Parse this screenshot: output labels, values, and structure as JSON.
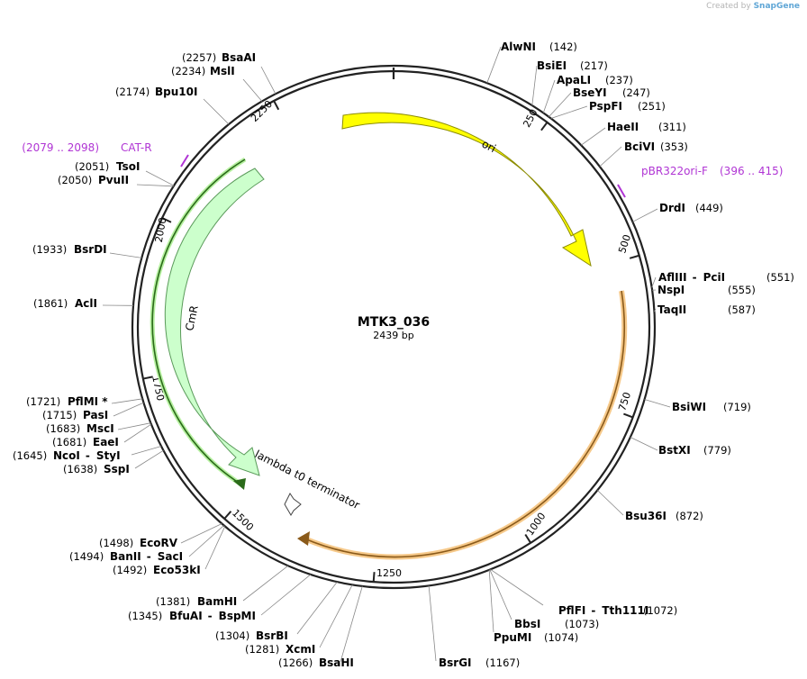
{
  "credit": {
    "prefix": "Created by",
    "brand": "SnapGene"
  },
  "plasmid": {
    "name": "MTK3_036",
    "length_label": "2439 bp",
    "length": 2439
  },
  "ruler": [
    {
      "label": "250",
      "pos": 250
    },
    {
      "label": "500",
      "pos": 500
    },
    {
      "label": "750",
      "pos": 750
    },
    {
      "label": "1000",
      "pos": 1000
    },
    {
      "label": "1250",
      "pos": 1250
    },
    {
      "label": "1500",
      "pos": 1500
    },
    {
      "label": "1750",
      "pos": 1750
    },
    {
      "label": "2000",
      "pos": 2000
    },
    {
      "label": "2250",
      "pos": 2250
    }
  ],
  "features": [
    {
      "name": "ori",
      "start": 233,
      "end": 500,
      "direction": "cw",
      "color": "#ffff00",
      "stroke": "#8c8c00",
      "label": "ori"
    },
    {
      "name": "CmR",
      "start": 1373,
      "end": 2033,
      "direction": "ccw",
      "color": "#ccffcc",
      "stroke": "#5a9a5a",
      "label": "CmR"
    },
    {
      "name": "lambda t0 terminator",
      "start": 1330,
      "end": 1345,
      "direction": "cw",
      "color": "#ffffff",
      "stroke": "#555555",
      "label": "lambda t0 terminator"
    }
  ],
  "primers": [
    {
      "name": "CAT-R",
      "range": "(2079 .. 2098)",
      "color": "#b035d4"
    },
    {
      "name": "pBR322ori-F",
      "range": "(396 .. 415)",
      "color": "#b035d4"
    }
  ],
  "sites": [
    {
      "name": "BsaAI",
      "pos": "(2257)"
    },
    {
      "name": "MslI",
      "pos": "(2234)"
    },
    {
      "name": "Bpu10I",
      "pos": "(2174)"
    },
    {
      "name": "TsoI",
      "pos": "(2051)"
    },
    {
      "name": "PvuII",
      "pos": "(2050)"
    },
    {
      "name": "BsrDI",
      "pos": "(1933)"
    },
    {
      "name": "AclI",
      "pos": "(1861)"
    },
    {
      "name": "PflMI *",
      "pos": "(1721)"
    },
    {
      "name": "PasI",
      "pos": "(1715)"
    },
    {
      "name": "MscI",
      "pos": "(1683)"
    },
    {
      "name": "EaeI",
      "pos": "(1681)"
    },
    {
      "name": "NcoI",
      "name2": "StyI",
      "pos": "(1645)"
    },
    {
      "name": "SspI",
      "pos": "(1638)"
    },
    {
      "name": "EcoRV",
      "pos": "(1498)"
    },
    {
      "name": "BanII",
      "name2": "SacI",
      "pos": "(1494)"
    },
    {
      "name": "Eco53kI",
      "pos": "(1492)"
    },
    {
      "name": "BamHI",
      "pos": "(1381)"
    },
    {
      "name": "BfuAI",
      "name2": "BspMI",
      "pos": "(1345)"
    },
    {
      "name": "BsrBI",
      "pos": "(1304)"
    },
    {
      "name": "XcmI",
      "pos": "(1281)"
    },
    {
      "name": "BsaHI",
      "pos": "(1266)"
    },
    {
      "name": "BsrGI",
      "pos": "(1167)"
    },
    {
      "name": "PpuMI",
      "pos": "(1074)"
    },
    {
      "name": "BbsI",
      "pos": "(1073)"
    },
    {
      "name": "PflFI",
      "name2": "Tth111I",
      "pos": "(1072)"
    },
    {
      "name": "Bsu36I",
      "pos": "(872)"
    },
    {
      "name": "BstXI",
      "pos": "(779)"
    },
    {
      "name": "BsiWI",
      "pos": "(719)"
    },
    {
      "name": "TaqII",
      "pos": "(587)"
    },
    {
      "name": "NspI",
      "pos": "(555)"
    },
    {
      "name": "AflIII",
      "name2": "PciI",
      "pos": "(551)"
    },
    {
      "name": "DrdI",
      "pos": "(449)"
    },
    {
      "name": "BciVI",
      "pos": "(353)"
    },
    {
      "name": "HaeII",
      "pos": "(311)"
    },
    {
      "name": "PspFI",
      "pos": "(251)"
    },
    {
      "name": "BseYI",
      "pos": "(247)"
    },
    {
      "name": "ApaLI",
      "pos": "(237)"
    },
    {
      "name": "BsiEI",
      "pos": "(217)"
    },
    {
      "name": "AlwNI",
      "pos": "(142)"
    }
  ],
  "colors": {
    "backbone": "#222222",
    "orange_feature": "#f6c98a",
    "orange_stroke": "#8a5a1a"
  }
}
